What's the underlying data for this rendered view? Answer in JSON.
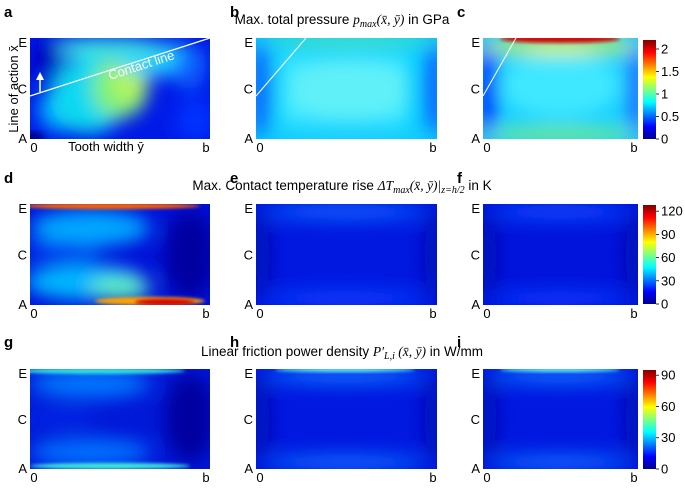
{
  "rows": [
    {
      "title": "Max. total pressure pₘₐₓ(x̄, ȳ) in GPa",
      "title_main": "Max. total pressure ",
      "title_math": "p",
      "title_sub": "max",
      "title_args": "(x̄, ȳ)",
      "title_unit": " in GPa",
      "panel_letters": [
        "a",
        "b",
        "c"
      ],
      "colorbar_ticks": [
        "2",
        "1.5",
        "1",
        "0.5",
        "0"
      ],
      "colorbar_values": [
        2,
        1.5,
        1,
        0.5,
        0
      ],
      "colorbar_max": 2.2
    },
    {
      "title_main": "Max. Contact temperature rise ",
      "title_math": "ΔT",
      "title_sub": "max",
      "title_args": "(x̄, ȳ)|",
      "title_sub2": "z=h/2",
      "title_unit": " in K",
      "panel_letters": [
        "d",
        "e",
        "f"
      ],
      "colorbar_ticks": [
        "120",
        "90",
        "60",
        "30",
        "0"
      ],
      "colorbar_values": [
        120,
        90,
        60,
        30,
        0
      ],
      "colorbar_max": 128
    },
    {
      "title_main": "Linear friction power density ",
      "title_math": "P′",
      "title_sub": "L,i",
      "title_args": " (x̄, ȳ)",
      "title_unit": " in W/mm",
      "panel_letters": [
        "g",
        "h",
        "i"
      ],
      "colorbar_ticks": [
        "90",
        "60",
        "30",
        "0"
      ],
      "colorbar_values": [
        90,
        60,
        30,
        0
      ],
      "colorbar_max": 95
    }
  ],
  "axes": {
    "y_ticks": [
      "E",
      "C",
      "A"
    ],
    "x_tick_start": "0",
    "x_tick_end": "b",
    "ylabel": "Line of action x̄",
    "xlabel": "Tooth width ȳ",
    "contact_line_label": "Contact line"
  },
  "colors": {
    "jet_dark_blue": "#00008f",
    "jet_blue": "#0000ff",
    "jet_cyan": "#00ffff",
    "jet_yellow": "#ffff00",
    "jet_red": "#ff0000",
    "jet_dark_red": "#800000"
  }
}
